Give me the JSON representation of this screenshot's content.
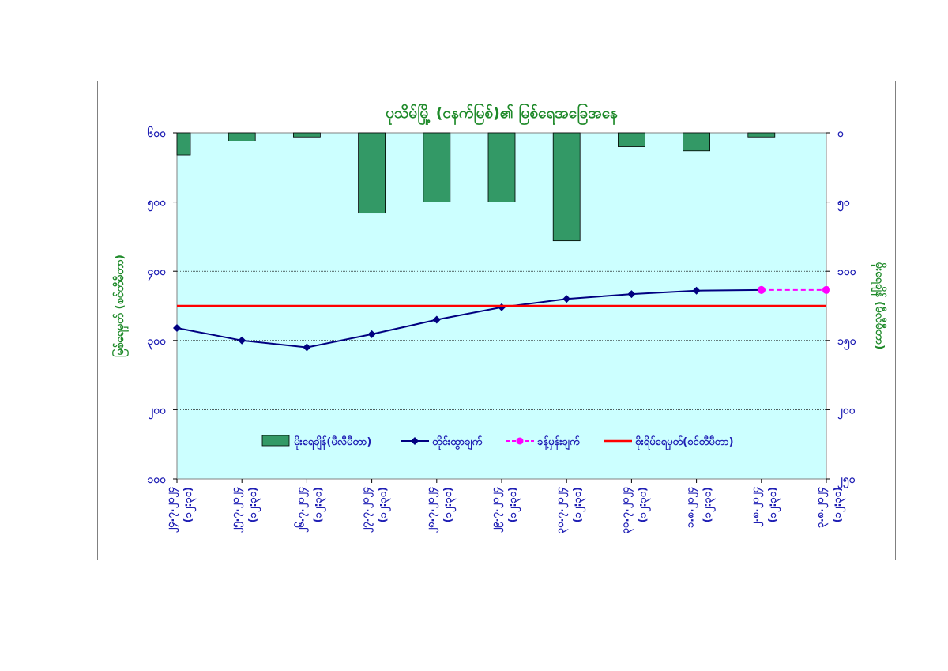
{
  "chart_data": {
    "type": "bar+line",
    "title": "ပုသိမ်မြို့ (ငနက်မြစ်)၏ မြစ်ရေအခြေအနေ",
    "ylabel_left": "မြစ်ရေမှတ် (စင်တီမီတာ)",
    "ylabel_right": "မိုးရေချိန် (မီလီမီတာ)",
    "ylim_left": [
      100,
      600
    ],
    "ylim_right": [
      0,
      250
    ],
    "right_axis_inverted": true,
    "yticks_left": [
      "၁၀၀",
      "၂၀၀",
      "၃၀၀",
      "၄၀၀",
      "၅၀၀",
      "၆၀၀"
    ],
    "yticks_right": [
      "၀",
      "၅၀",
      "၁၀၀",
      "၁၅၀",
      "၂၀၀",
      "၂၅၀"
    ],
    "categories": [
      [
        "၂၄.၇.၂၀၂၄",
        "(၁၂:၃၀)"
      ],
      [
        "၂၅.၇.၂၀၂၄",
        "(၁၂:၃၀)"
      ],
      [
        "၂၆.၇.၂၀၂၄",
        "(၁၂:၃၀)"
      ],
      [
        "၂၇.၇.၂၀၂၄",
        "(၁၂:၃၀)"
      ],
      [
        "၂၈.၇.၂၀၂၄",
        "(၁၂:၃၀)"
      ],
      [
        "၂၉.၇.၂၀၂၄",
        "(၁၂:၃၀)"
      ],
      [
        "၃၀.၇.၂၀၂၄",
        "(၁၂:၃၀)"
      ],
      [
        "၃၁.၇.၂၀၂၄",
        "(၁၂:၃၀)"
      ],
      [
        "၁.၈.၂၀၂၄",
        "(၁၂:၃၀)"
      ],
      [
        "၂.၈.၂၀၂၄",
        "(၁၂:၃၀)"
      ],
      [
        "၃.၈.၂၀၂၄",
        "(၁၂:၃၀)"
      ]
    ],
    "series": [
      {
        "name": "မိုးရေချိန်(မီလီမီတာ)",
        "type": "bar",
        "axis": "right",
        "color": "#339966",
        "values": [
          16,
          6,
          3,
          58,
          50,
          50,
          78,
          10,
          13,
          3,
          null
        ]
      },
      {
        "name": "တိုင်းထွာချက်",
        "type": "line",
        "axis": "left",
        "color": "#000080",
        "values": [
          318,
          300,
          290,
          309,
          330,
          348,
          360,
          367,
          372,
          373,
          null
        ]
      },
      {
        "name": "ခန့်မှန်းချက်",
        "type": "line",
        "axis": "left",
        "color": "#ff00ff",
        "dashed": true,
        "values": [
          null,
          null,
          null,
          null,
          null,
          null,
          null,
          null,
          null,
          373,
          373
        ]
      },
      {
        "name": "စိုးရိမ်ရေမှတ်(စင်တီမီတာ)",
        "type": "line",
        "axis": "left",
        "color": "#ff0000",
        "values": [
          350,
          350,
          350,
          350,
          350,
          350,
          350,
          350,
          350,
          350,
          350
        ]
      }
    ],
    "grid": true,
    "legend_position": "bottom-center"
  }
}
